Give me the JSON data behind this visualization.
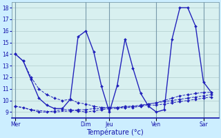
{
  "xlabel": "Température (°c)",
  "bg_color": "#cceeff",
  "plot_bg_color": "#d8f0f0",
  "grid_color": "#b0cccc",
  "line_color": "#2222bb",
  "vline_color": "#7799aa",
  "ylim": [
    8.5,
    18.5
  ],
  "yticks": [
    9,
    10,
    11,
    12,
    13,
    14,
    15,
    16,
    17,
    18
  ],
  "day_labels": [
    "Mer",
    "Dim",
    "Jeu",
    "Ven",
    "Sar"
  ],
  "day_x": [
    0,
    9,
    12,
    18,
    24
  ],
  "xlim": [
    -0.5,
    26
  ],
  "series1_x": [
    0,
    1,
    2,
    3,
    4,
    5,
    6,
    7,
    8,
    9,
    10,
    11,
    12,
    13,
    14,
    15,
    16,
    17,
    18,
    19,
    20,
    21,
    22,
    23,
    24,
    25
  ],
  "series1_y": [
    14.0,
    13.4,
    12.0,
    11.0,
    10.5,
    10.2,
    10.0,
    10.1,
    9.8,
    9.7,
    9.5,
    9.4,
    9.4,
    9.4,
    9.4,
    9.5,
    9.5,
    9.7,
    9.8,
    10.0,
    10.2,
    10.4,
    10.5,
    10.6,
    10.7,
    10.7
  ],
  "series2_x": [
    0,
    1,
    2,
    3,
    4,
    5,
    6,
    7,
    8,
    9,
    10,
    11,
    12,
    13,
    14,
    15,
    16,
    17,
    18,
    19,
    20,
    21,
    22,
    23,
    24,
    25
  ],
  "series2_y": [
    9.5,
    9.4,
    9.2,
    9.0,
    9.0,
    9.1,
    9.2,
    9.2,
    9.1,
    9.0,
    9.1,
    9.2,
    9.3,
    9.3,
    9.4,
    9.4,
    9.5,
    9.6,
    9.6,
    9.7,
    9.8,
    9.9,
    10.0,
    10.1,
    10.2,
    10.3
  ],
  "series3_x": [
    0,
    2,
    5,
    7,
    8,
    9,
    10,
    11,
    12,
    13,
    14,
    15,
    16,
    17,
    18,
    19,
    20,
    21,
    22,
    23,
    24,
    25
  ],
  "series3_y": [
    9.5,
    9.2,
    9.0,
    9.1,
    9.2,
    9.2,
    9.3,
    9.3,
    9.4,
    9.4,
    9.5,
    9.5,
    9.6,
    9.7,
    9.8,
    9.9,
    10.0,
    10.1,
    10.2,
    10.3,
    10.4,
    10.5
  ],
  "series4_x": [
    0,
    1,
    2,
    3,
    4,
    5,
    6,
    7,
    8,
    9,
    10,
    11,
    12,
    13,
    14,
    15,
    16,
    17,
    18,
    19,
    20,
    21,
    22,
    23,
    24,
    25
  ],
  "series4_y": [
    14.0,
    13.4,
    11.8,
    10.2,
    9.6,
    9.3,
    9.3,
    10.1,
    15.5,
    16.0,
    14.2,
    11.2,
    9.0,
    11.3,
    15.3,
    12.8,
    10.6,
    9.5,
    9.0,
    9.2,
    15.3,
    18.0,
    18.0,
    16.4,
    11.6,
    10.7
  ]
}
